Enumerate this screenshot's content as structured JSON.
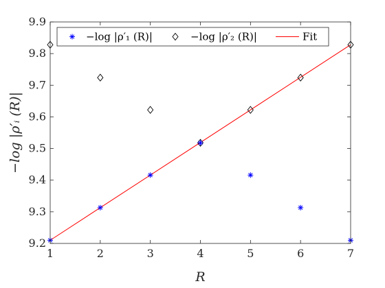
{
  "chart_data": {
    "type": "scatter",
    "xlabel": "R",
    "ylabel": "−log |ρ′ᵢ (R)|",
    "xlim": [
      1,
      7
    ],
    "ylim": [
      9.2,
      9.9
    ],
    "x_ticks": [
      "1",
      "2",
      "3",
      "4",
      "5",
      "6",
      "7"
    ],
    "y_ticks": [
      "9.2",
      "9.3",
      "9.4",
      "9.5",
      "9.6",
      "9.7",
      "9.8",
      "9.9"
    ],
    "x_tick_values": [
      1,
      2,
      3,
      4,
      5,
      6,
      7
    ],
    "y_tick_values": [
      9.2,
      9.3,
      9.4,
      9.5,
      9.6,
      9.7,
      9.8,
      9.9
    ],
    "grid": false,
    "legend_position": "top",
    "series": [
      {
        "name": "−log |ρ′₁ (R)|",
        "marker": "asterisk",
        "color": "#0000ff",
        "x": [
          1,
          2,
          3,
          4,
          5,
          6,
          7
        ],
        "y": [
          9.21,
          9.313,
          9.416,
          9.518,
          9.416,
          9.313,
          9.21
        ]
      },
      {
        "name": "−log |ρ′₂ (R)|",
        "marker": "diamond",
        "color": "#000000",
        "x": [
          1,
          2,
          3,
          4,
          5,
          6,
          7
        ],
        "y": [
          9.828,
          9.724,
          9.622,
          9.518,
          9.622,
          9.724,
          9.828
        ]
      },
      {
        "name": "Fit",
        "marker": "line",
        "color": "#ff0000",
        "x": [
          1,
          7
        ],
        "y": [
          9.21,
          9.828
        ]
      }
    ]
  }
}
